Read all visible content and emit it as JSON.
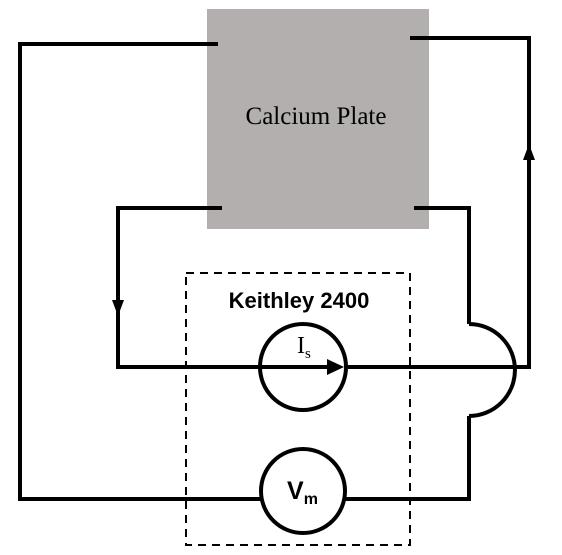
{
  "diagram": {
    "plate": {
      "label": "Calcium Plate",
      "fill_color": "#b2afae"
    },
    "instrument": {
      "label": "Keithley 2400"
    },
    "current_source": {
      "symbol": "I",
      "subscript": "s"
    },
    "voltmeter": {
      "symbol": "V",
      "subscript": "m"
    },
    "colors": {
      "wire": "#000000",
      "background": "#ffffff"
    }
  }
}
